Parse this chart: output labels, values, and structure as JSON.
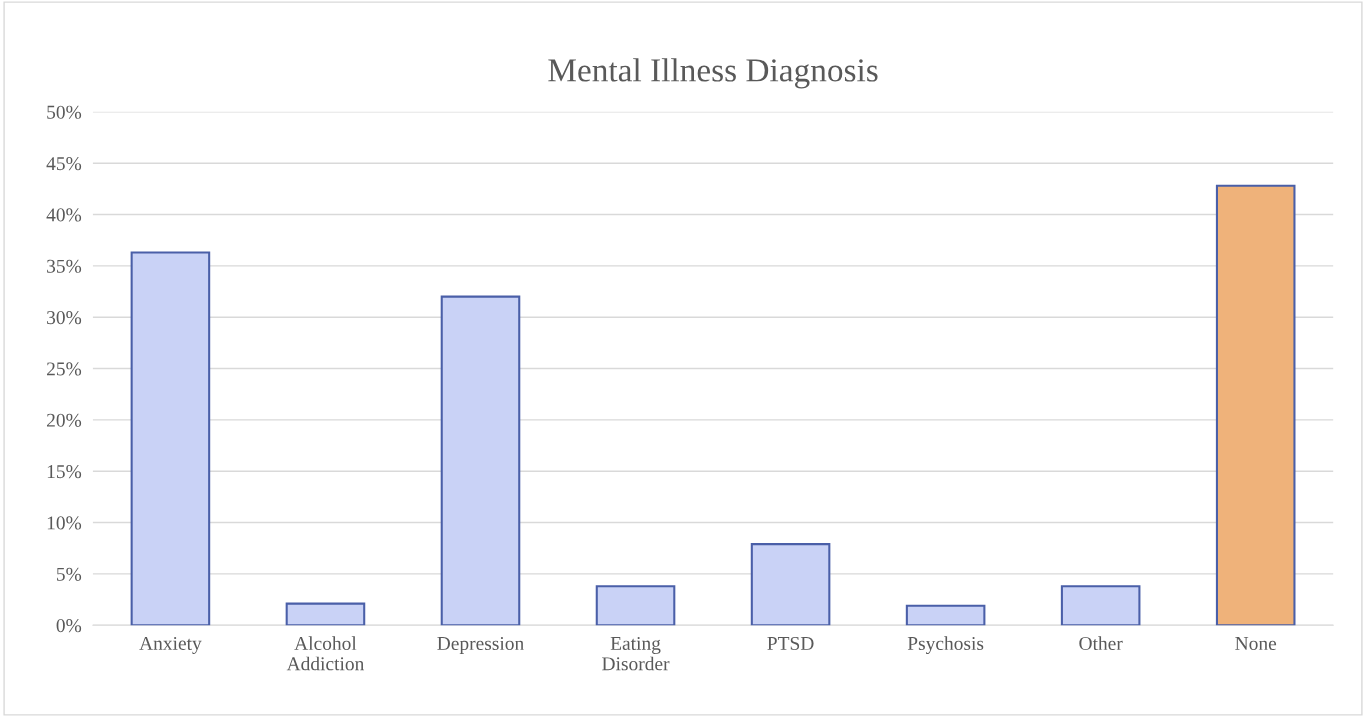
{
  "chart_data": {
    "type": "bar",
    "title": "Mental Illness Diagnosis",
    "categories": [
      "Anxiety",
      "Alcohol\nAddiction",
      "Depression",
      "Eating\nDisorder",
      "PTSD",
      "Psychosis",
      "Other",
      "None"
    ],
    "values": [
      36.3,
      2.1,
      32.0,
      3.8,
      7.9,
      1.9,
      3.8,
      42.8
    ],
    "colors": [
      "#c9d2f6",
      "#c9d2f6",
      "#c9d2f6",
      "#c9d2f6",
      "#c9d2f6",
      "#c9d2f6",
      "#c9d2f6",
      "#efb27a"
    ],
    "ylim": [
      0,
      50
    ],
    "yticks": [
      {
        "value": 0,
        "label": "0%"
      },
      {
        "value": 5,
        "label": "5%"
      },
      {
        "value": 10,
        "label": "10%"
      },
      {
        "value": 15,
        "label": "15%"
      },
      {
        "value": 20,
        "label": "20%"
      },
      {
        "value": 25,
        "label": "25%"
      },
      {
        "value": 30,
        "label": "30%"
      },
      {
        "value": 35,
        "label": "35%"
      },
      {
        "value": 40,
        "label": "40%"
      },
      {
        "value": 45,
        "label": "45%"
      },
      {
        "value": 50,
        "label": "50%"
      }
    ],
    "grid": "y",
    "legend": false
  }
}
